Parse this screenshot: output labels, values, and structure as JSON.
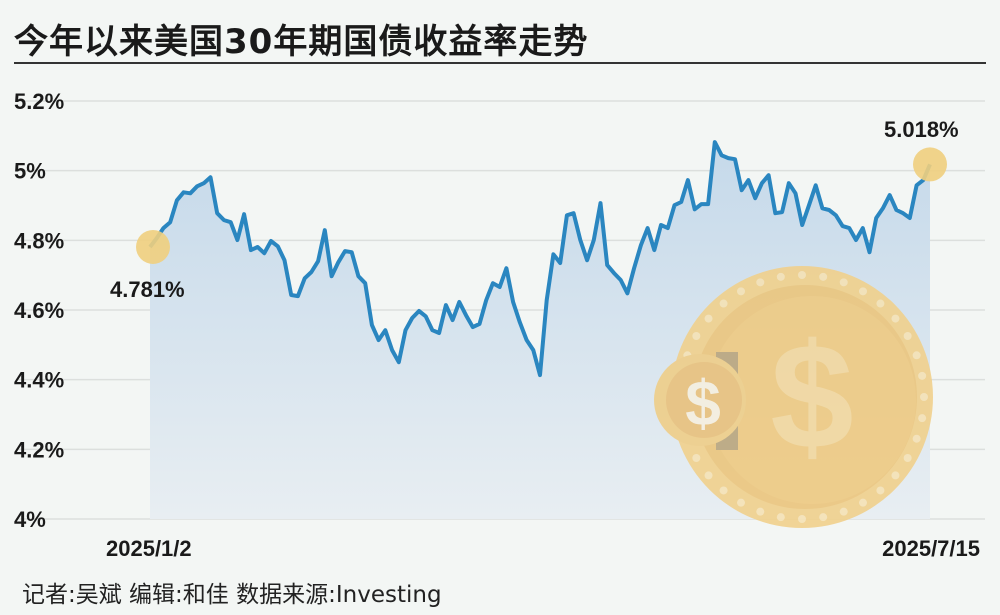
{
  "title": "今年以来美国30年期国债收益率走势",
  "footer": "记者:吴斌  编辑:和佳  数据来源:Investing",
  "colors": {
    "line": "#2a86c0",
    "area_top": "#c5d9ea",
    "area_bottom": "#e8eef2",
    "marker": "#efcf7e",
    "coin": "#f0c97a"
  },
  "chart_data": {
    "type": "area",
    "title": "今年以来美国30年期国债收益率走势",
    "xlabel": "",
    "ylabel": "",
    "x_start": "2025/1/2",
    "x_end": "2025/7/15",
    "x_tick_labels": [
      "2025/1/2",
      "2025/7/15"
    ],
    "y_ticks": [
      4.0,
      4.2,
      4.4,
      4.6,
      4.8,
      5.0,
      5.2
    ],
    "y_tick_labels": [
      "4%",
      "4.2%",
      "4.4%",
      "4.6%",
      "4.8%",
      "5%",
      "5.2%"
    ],
    "ylim": [
      4.0,
      5.2
    ],
    "grid": "horizontal",
    "annotations": [
      {
        "label": "4.781%",
        "point": "first"
      },
      {
        "label": "5.018%",
        "point": "last"
      }
    ],
    "values": [
      4.781,
      4.806,
      4.835,
      4.852,
      4.915,
      4.938,
      4.935,
      4.955,
      4.964,
      4.981,
      4.878,
      4.858,
      4.852,
      4.801,
      4.875,
      4.772,
      4.781,
      4.763,
      4.798,
      4.783,
      4.743,
      4.643,
      4.64,
      4.691,
      4.709,
      4.74,
      4.829,
      4.697,
      4.737,
      4.769,
      4.766,
      4.697,
      4.677,
      4.557,
      4.514,
      4.542,
      4.485,
      4.45,
      4.542,
      4.577,
      4.597,
      4.582,
      4.542,
      4.534,
      4.614,
      4.571,
      4.623,
      4.585,
      4.551,
      4.56,
      4.628,
      4.677,
      4.666,
      4.72,
      4.623,
      4.565,
      4.514,
      4.485,
      4.413,
      4.628,
      4.76,
      4.735,
      4.872,
      4.878,
      4.801,
      4.743,
      4.801,
      4.907,
      4.729,
      4.706,
      4.686,
      4.648,
      4.72,
      4.786,
      4.835,
      4.772,
      4.844,
      4.835,
      4.901,
      4.91,
      4.973,
      4.889,
      4.904,
      4.904,
      5.082,
      5.044,
      5.036,
      5.033,
      4.944,
      4.973,
      4.921,
      4.964,
      4.987,
      4.878,
      4.881,
      4.964,
      4.935,
      4.844,
      4.901,
      4.958,
      4.892,
      4.887,
      4.872,
      4.841,
      4.835,
      4.801,
      4.835,
      4.766,
      4.864,
      4.892,
      4.93,
      4.887,
      4.878,
      4.864,
      4.958,
      4.973,
      5.018
    ]
  }
}
